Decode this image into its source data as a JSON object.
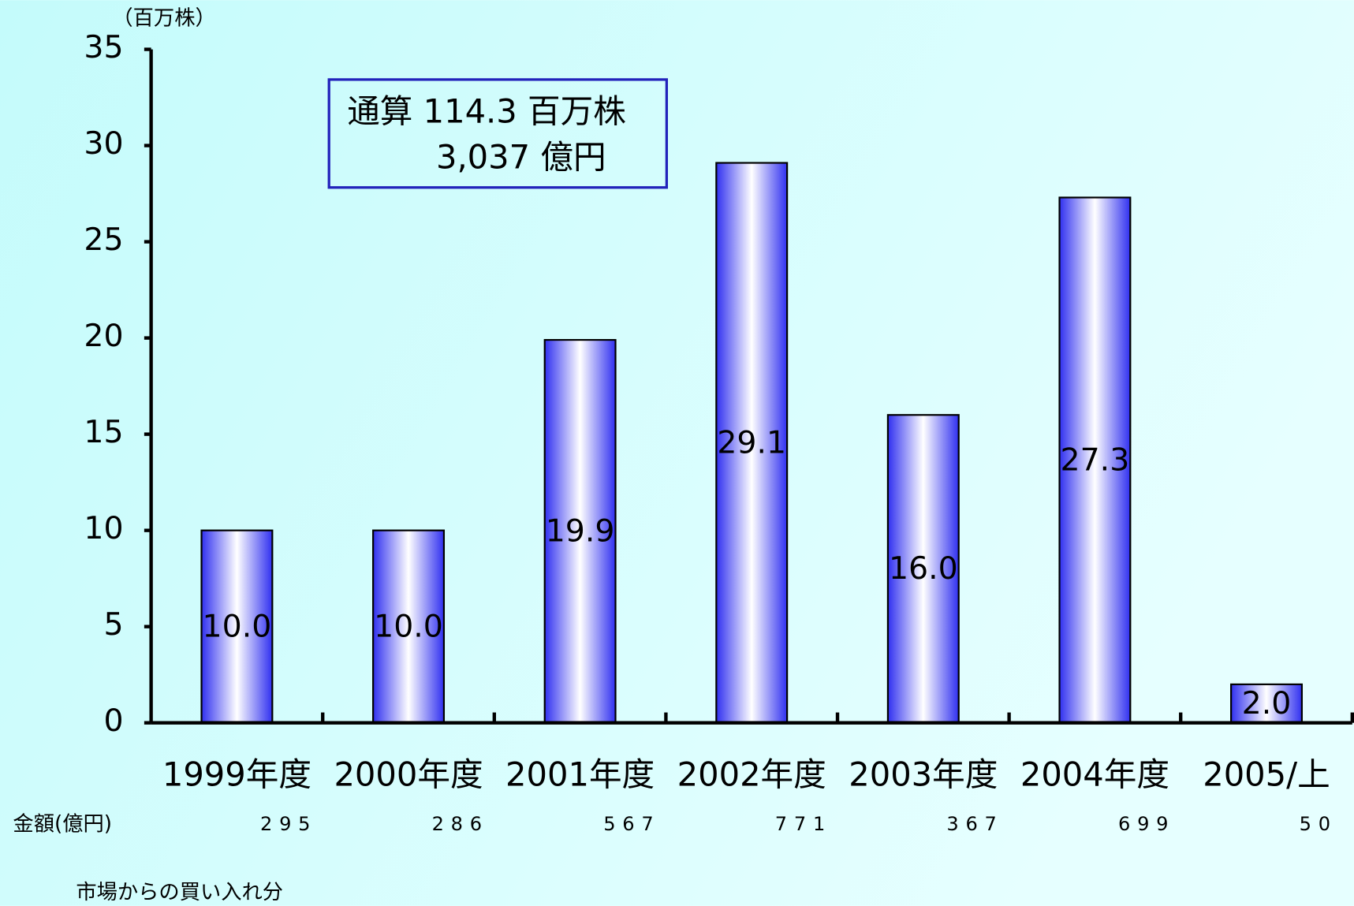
{
  "chart_data": {
    "type": "bar",
    "unit_label": "（百万株）",
    "categories": [
      "1999年度",
      "2000年度",
      "2001年度",
      "2002年度",
      "2003年度",
      "2004年度",
      "2005/上"
    ],
    "values": [
      10,
      10,
      19.9,
      29.1,
      16,
      27.3,
      2
    ],
    "value_labels": [
      "10.0",
      "10.0",
      "19.9",
      "29.1",
      "16.0",
      "27.3",
      "2.0"
    ],
    "color": "#3333ff",
    "ylim": [
      0,
      35
    ],
    "yticks": [
      0,
      5,
      10,
      15,
      20,
      25,
      30,
      35
    ],
    "annotation": [
      "通算 114.3 百万株",
      "3,037 億円"
    ],
    "amount_row": {
      "label": "金額(億円)",
      "values": [
        295,
        286,
        567,
        771,
        367,
        699,
        50
      ]
    },
    "footnote": "市場からの買い入れ分"
  }
}
